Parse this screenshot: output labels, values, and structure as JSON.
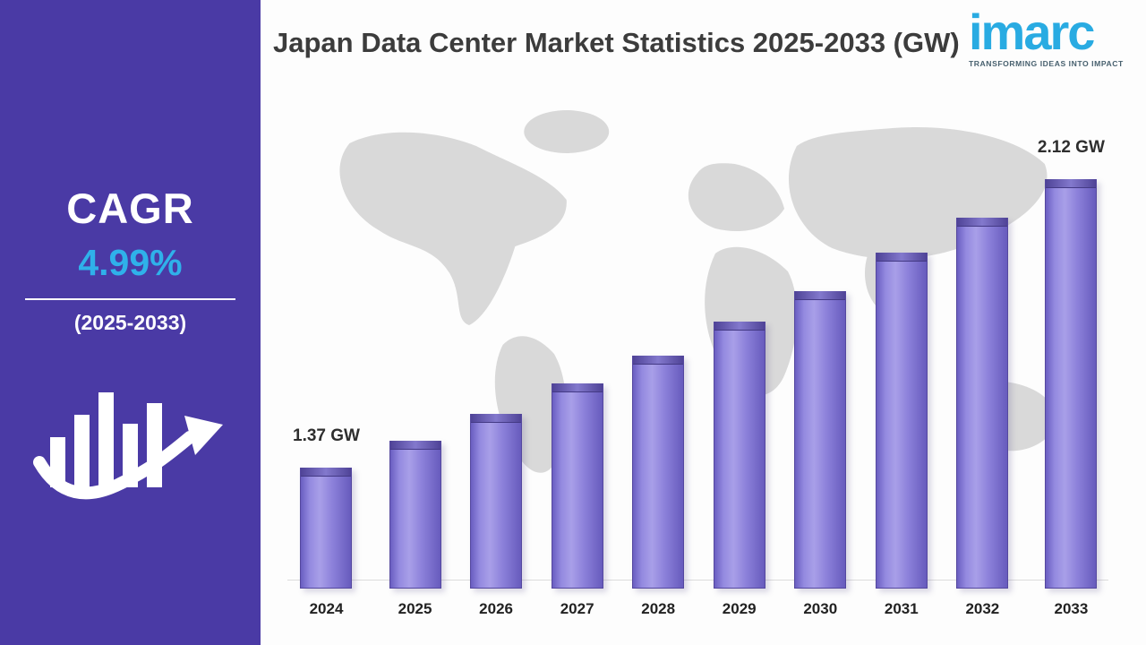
{
  "sidebar": {
    "cagr_label": "CAGR",
    "cagr_value": "4.99%",
    "period_label": "(2025-2033)"
  },
  "header": {
    "title": "Japan Data Center Market Statistics 2025-2033 (GW)"
  },
  "logo": {
    "brand": "imarc",
    "tagline": "TRANSFORMING IDEAS INTO IMPACT"
  },
  "colors": {
    "sidebar_bg": "#4a3aa5",
    "accent_cyan": "#29abe2",
    "bar_fill": "#8d82db",
    "bar_edge": "#4f4397",
    "map_gray": "#d9d9d9",
    "title_color": "#3c3c3c"
  },
  "chart_data": {
    "type": "bar",
    "title": "Japan Data Center Market Statistics 2025-2033 (GW)",
    "xlabel": "",
    "ylabel": "",
    "unit": "GW",
    "categories": [
      "2024",
      "2025",
      "2026",
      "2027",
      "2028",
      "2029",
      "2030",
      "2031",
      "2032",
      "2033"
    ],
    "values": [
      1.37,
      1.44,
      1.51,
      1.59,
      1.66,
      1.75,
      1.83,
      1.93,
      2.02,
      2.12
    ],
    "annotations": {
      "first": "1.37 GW",
      "last": "2.12 GW"
    },
    "cagr": "4.99%",
    "legend": "none",
    "grid": "off"
  }
}
